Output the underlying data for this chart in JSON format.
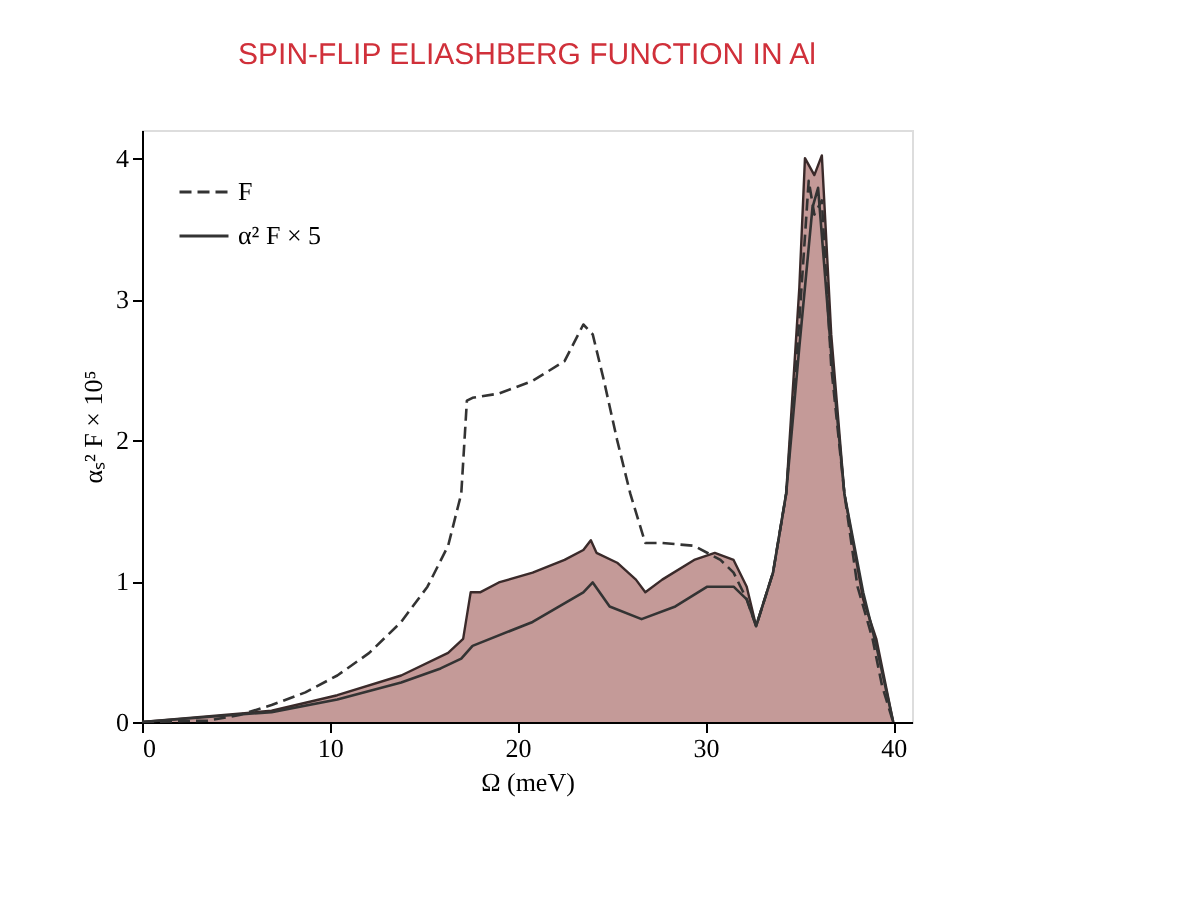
{
  "chart_data": {
    "type": "line",
    "title": "SPIN-FLIP ELIASHBERG FUNCTION IN Al",
    "xlabel": "Ω (meV)",
    "ylabel": "αₛ² F × 10⁵",
    "xlim": [
      0,
      41
    ],
    "xticks": [
      0,
      10,
      20,
      30,
      40
    ],
    "ylim": [
      0,
      4.2
    ],
    "yticks": [
      0,
      1,
      2,
      3,
      4
    ],
    "grid": false,
    "legend": "top left",
    "series": [
      {
        "type": "area",
        "color": "#c49a98",
        "x": [
          0,
          6.9,
          10.4,
          13.8,
          16.3,
          17.1,
          17.5,
          18,
          19,
          20.8,
          22.5,
          23.5,
          23.9,
          24.2,
          25.3,
          26.3,
          26.8,
          27.7,
          29.4,
          30.5,
          31.5,
          32.2,
          32.7,
          33.6,
          34.3,
          35,
          35.3,
          35.8,
          36.2,
          36.7,
          37.4,
          38.4,
          39.1,
          40
        ],
        "values": [
          0,
          0.08,
          0.19,
          0.33,
          0.49,
          0.59,
          0.92,
          0.92,
          0.99,
          1.06,
          1.15,
          1.22,
          1.29,
          1.2,
          1.13,
          1.01,
          0.92,
          1.01,
          1.15,
          1.2,
          1.15,
          0.96,
          0.68,
          1.06,
          1.62,
          3.08,
          4.0,
          3.88,
          4.02,
          2.75,
          1.62,
          0.87,
          0.59,
          0
        ]
      },
      {
        "name": "F",
        "color": "#333333",
        "line_style": "dashed",
        "x": [
          0,
          3.5,
          5.2,
          6.9,
          8.7,
          10.4,
          12.1,
          13.8,
          15.2,
          16.3,
          17,
          17.3,
          17.6,
          19,
          20.8,
          22.5,
          23.5,
          24,
          24.6,
          25.3,
          26,
          26.8,
          27.7,
          29.4,
          30.8,
          31.5,
          32.2,
          32.7,
          33.6,
          34.3,
          35,
          35.5,
          35.8,
          36.2,
          36.7,
          37.4,
          38.1,
          38.9,
          39.4,
          40
        ],
        "values": [
          0,
          0.01,
          0.05,
          0.12,
          0.21,
          0.33,
          0.49,
          0.71,
          0.96,
          1.25,
          1.62,
          2.28,
          2.3,
          2.33,
          2.42,
          2.56,
          2.82,
          2.75,
          2.42,
          2.0,
          1.62,
          1.27,
          1.27,
          1.25,
          1.15,
          1.06,
          0.87,
          0.68,
          1.06,
          1.62,
          2.85,
          3.84,
          3.6,
          3.7,
          2.52,
          1.62,
          0.96,
          0.59,
          0.26,
          0
        ]
      },
      {
        "name": "α² F × 5",
        "color": "#333333",
        "line_style": "solid",
        "x": [
          0,
          6.9,
          10.4,
          13.8,
          15.9,
          17,
          17.6,
          20.8,
          23.5,
          24,
          24.9,
          26.6,
          28.4,
          30.1,
          31.5,
          32.2,
          32.7,
          33.6,
          34.3,
          35,
          35.7,
          36,
          36.7,
          37.4,
          38.4,
          39.1,
          40
        ],
        "values": [
          0,
          0.07,
          0.16,
          0.28,
          0.38,
          0.45,
          0.54,
          0.71,
          0.92,
          0.99,
          0.82,
          0.73,
          0.82,
          0.96,
          0.96,
          0.87,
          0.68,
          1.06,
          1.62,
          2.66,
          3.65,
          3.79,
          2.61,
          1.62,
          0.92,
          0.54,
          0
        ]
      }
    ]
  }
}
